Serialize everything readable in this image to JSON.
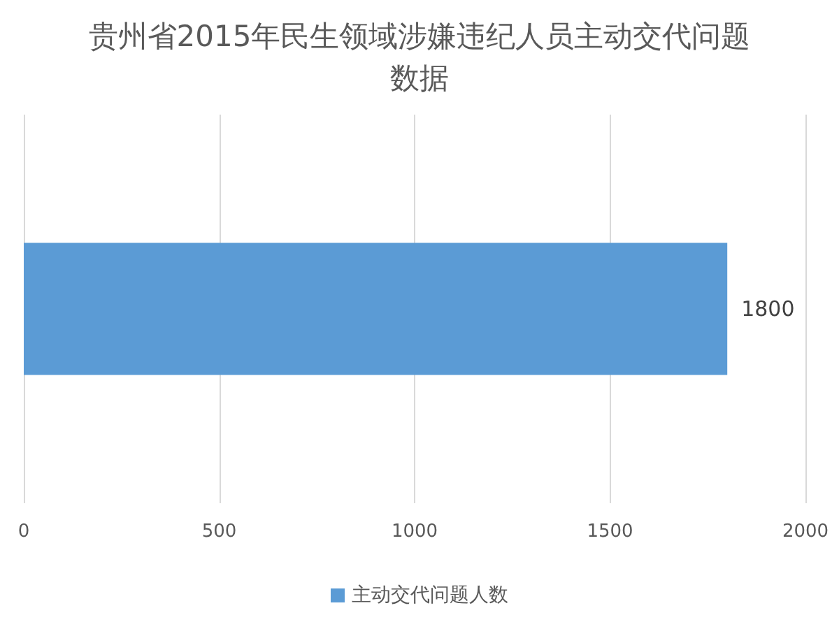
{
  "chart_data": {
    "type": "bar",
    "orientation": "horizontal",
    "title": "贵州省2015年民生领域涉嫌违纪人员主动交代问题数据",
    "categories": [
      null
    ],
    "series": [
      {
        "name": "主动交代问题人数",
        "color": "#5b9bd5",
        "values": [
          1800
        ]
      }
    ],
    "xlim": [
      0,
      2000
    ],
    "xticks": [
      0,
      500,
      1000,
      1500,
      2000
    ],
    "grid": "x",
    "legend": "bottom",
    "data_labels": true
  }
}
